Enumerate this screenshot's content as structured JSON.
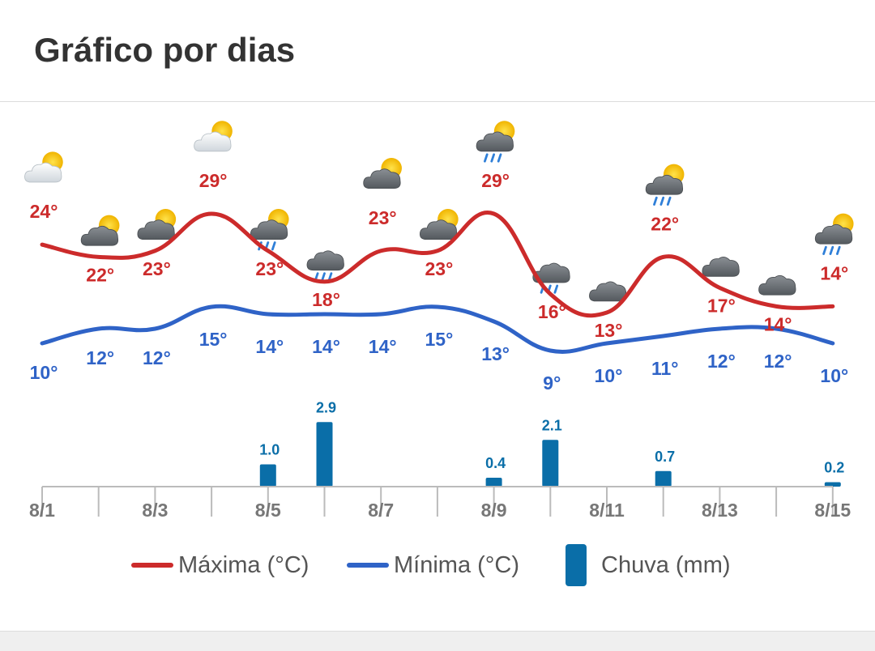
{
  "header": {
    "title": "Gráfico por dias"
  },
  "colors": {
    "max": "#cc2b2b",
    "min": "#2f63c7",
    "rain": "#0a6ea8",
    "axis": "#bbbbbb"
  },
  "chart_data": {
    "type": "line",
    "x": [
      "8/1",
      "8/2",
      "8/3",
      "8/4",
      "8/5",
      "8/6",
      "8/7",
      "8/8",
      "8/9",
      "8/10",
      "8/11",
      "8/12",
      "8/13",
      "8/14",
      "8/15"
    ],
    "tick_labels": [
      "8/1",
      "8/3",
      "8/5",
      "8/7",
      "8/9",
      "8/11",
      "8/13",
      "8/15"
    ],
    "series": [
      {
        "name": "Máxima (°C)",
        "values": [
          24,
          22,
          23,
          29,
          23,
          18,
          23,
          23,
          29,
          16,
          13,
          22,
          17,
          14,
          14
        ]
      },
      {
        "name": "Mínima (°C)",
        "values": [
          10,
          12,
          12,
          15,
          14,
          14,
          14,
          15,
          13,
          9,
          10,
          11,
          12,
          12,
          10
        ]
      },
      {
        "name": "Chuva (mm)",
        "type": "bar",
        "values": [
          null,
          null,
          null,
          null,
          1.0,
          2.9,
          null,
          null,
          0.4,
          2.1,
          null,
          0.7,
          null,
          null,
          0.2
        ],
        "labels": [
          "",
          "",
          "",
          "",
          "1.0",
          "2.9",
          "",
          "",
          "0.4",
          "2.1",
          "",
          "0.7",
          "",
          "",
          "0.2"
        ]
      }
    ],
    "max_labels": [
      "24°",
      "22°",
      "23°",
      "29°",
      "23°",
      "18°",
      "23°",
      "23°",
      "29°",
      "16°",
      "13°",
      "22°",
      "17°",
      "14°",
      "14°"
    ],
    "min_labels": [
      "10°",
      "12°",
      "12°",
      "15°",
      "14°",
      "14°",
      "14°",
      "15°",
      "13°",
      "9°",
      "10°",
      "11°",
      "12°",
      "12°",
      "10°"
    ],
    "icons": [
      "partly-sunny-icon",
      "partly-cloudy-icon",
      "partly-cloudy-icon",
      "partly-sunny-icon",
      "sun-cloud-rain-icon",
      "rain-cloud-icon",
      "partly-cloudy-icon",
      "partly-cloudy-icon",
      "sun-cloud-rain-icon",
      "rain-cloud-icon",
      "cloud-icon",
      "sun-cloud-rain-icon",
      "cloud-icon",
      "cloud-icon",
      "sun-cloud-rain-icon"
    ],
    "legend_placement": "bottom",
    "grid": false
  }
}
